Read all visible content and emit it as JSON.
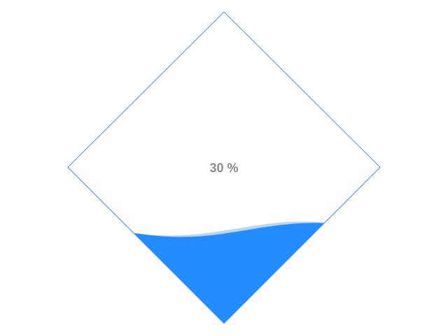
{
  "chart_data": {
    "type": "liquidfill",
    "shape": "diamond",
    "value": 0.3,
    "label": "30 %",
    "colors": {
      "fill": "#228bff",
      "wave_back": "#b9d6f5",
      "outline": "#4a90e2",
      "label": "#8c8c8c"
    }
  }
}
